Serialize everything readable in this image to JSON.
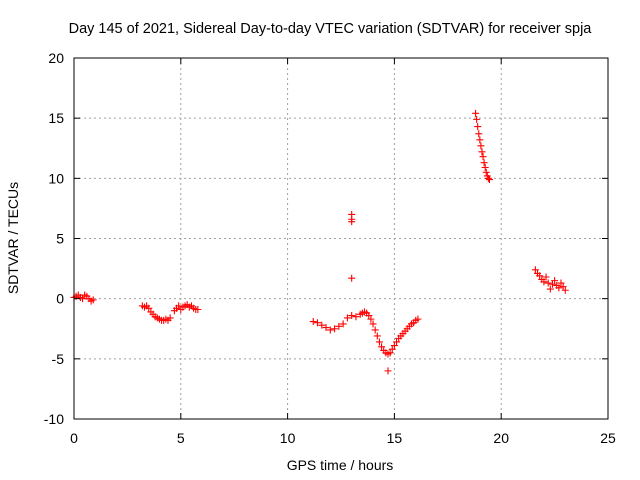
{
  "chart_data": {
    "type": "scatter",
    "title": "Day 145 of 2021, Sidereal Day-to-day VTEC variation (SDTVAR) for receiver spja",
    "xlabel": "GPS time / hours",
    "ylabel": "SDTVAR / TECUs",
    "xlim": [
      0,
      25
    ],
    "ylim": [
      -10,
      20
    ],
    "xticks": [
      0,
      5,
      10,
      15,
      20,
      25
    ],
    "yticks": [
      -10,
      -5,
      0,
      5,
      10,
      15,
      20
    ],
    "xtick_labels": [
      "0",
      "5",
      "10",
      "15",
      "20",
      "25"
    ],
    "ytick_labels": [
      "-10",
      "-5",
      "0",
      "5",
      "10",
      "15",
      "20"
    ],
    "grid": true,
    "marker": "+",
    "color": "#ff0000",
    "segments": [
      {
        "x": [
          0.0,
          0.1,
          0.2,
          0.3,
          0.4,
          0.5,
          0.6,
          0.7,
          0.8,
          0.9
        ],
        "y": [
          0.1,
          0.2,
          0.3,
          0.1,
          0.0,
          0.3,
          0.2,
          0.0,
          -0.2,
          -0.1
        ]
      },
      {
        "x": [
          3.2,
          3.3,
          3.4,
          3.5,
          3.6,
          3.7,
          3.8,
          3.9,
          4.0,
          4.1,
          4.2,
          4.3,
          4.4,
          4.5
        ],
        "y": [
          -0.6,
          -0.7,
          -0.6,
          -0.8,
          -1.1,
          -1.3,
          -1.5,
          -1.6,
          -1.7,
          -1.8,
          -1.8,
          -1.7,
          -1.8,
          -1.6
        ]
      },
      {
        "x": [
          4.7,
          4.8,
          4.9,
          5.0,
          5.1,
          5.2,
          5.3,
          5.4,
          5.5,
          5.6,
          5.7,
          5.8
        ],
        "y": [
          -1.0,
          -0.8,
          -0.6,
          -0.9,
          -0.7,
          -0.6,
          -0.5,
          -0.7,
          -0.6,
          -0.8,
          -0.9,
          -0.9
        ]
      },
      {
        "x": [
          11.2,
          11.4,
          11.6,
          11.8,
          12.0,
          12.2,
          12.4,
          12.6,
          12.8,
          13.0
        ],
        "y": [
          -1.9,
          -2.0,
          -2.2,
          -2.4,
          -2.6,
          -2.5,
          -2.3,
          -2.1,
          -1.6,
          -1.4
        ]
      },
      {
        "x": [
          13.0,
          13.0,
          13.0,
          13.0
        ],
        "y": [
          7.0,
          6.6,
          6.4,
          1.7
        ]
      },
      {
        "x": [
          13.2,
          13.4,
          13.5,
          13.6,
          13.7,
          13.8,
          13.9,
          14.0,
          14.1,
          14.2,
          14.3,
          14.4,
          14.5,
          14.6,
          14.7,
          14.8,
          14.9,
          15.0,
          15.1,
          15.2,
          15.3,
          15.4,
          15.5,
          15.6,
          15.7,
          15.8,
          15.9,
          16.0,
          16.1
        ],
        "y": [
          -1.5,
          -1.3,
          -1.2,
          -1.1,
          -1.2,
          -1.4,
          -1.7,
          -2.1,
          -2.6,
          -3.1,
          -3.6,
          -4.0,
          -4.3,
          -4.5,
          -4.6,
          -4.5,
          -4.2,
          -3.9,
          -3.6,
          -3.3,
          -3.1,
          -2.9,
          -2.7,
          -2.5,
          -2.3,
          -2.1,
          -2.0,
          -1.8,
          -1.7
        ]
      },
      {
        "x": [
          14.7
        ],
        "y": [
          -6.0
        ]
      },
      {
        "x": [
          18.8,
          18.85,
          18.9,
          18.95,
          19.0,
          19.05,
          19.1,
          19.15,
          19.2,
          19.25,
          19.3,
          19.35,
          19.4,
          19.45
        ],
        "y": [
          15.4,
          14.9,
          14.3,
          13.7,
          13.2,
          12.7,
          12.2,
          11.8,
          11.3,
          10.9,
          10.5,
          10.2,
          10.0,
          9.9
        ]
      },
      {
        "x": [
          21.6,
          21.7,
          21.8,
          21.9,
          22.0,
          22.1,
          22.2,
          22.3,
          22.4,
          22.5,
          22.6,
          22.7,
          22.8,
          22.9,
          23.0
        ],
        "y": [
          2.4,
          2.1,
          1.9,
          1.6,
          1.4,
          1.8,
          1.3,
          0.8,
          1.2,
          1.5,
          1.1,
          0.9,
          1.3,
          1.0,
          0.7
        ]
      }
    ]
  }
}
